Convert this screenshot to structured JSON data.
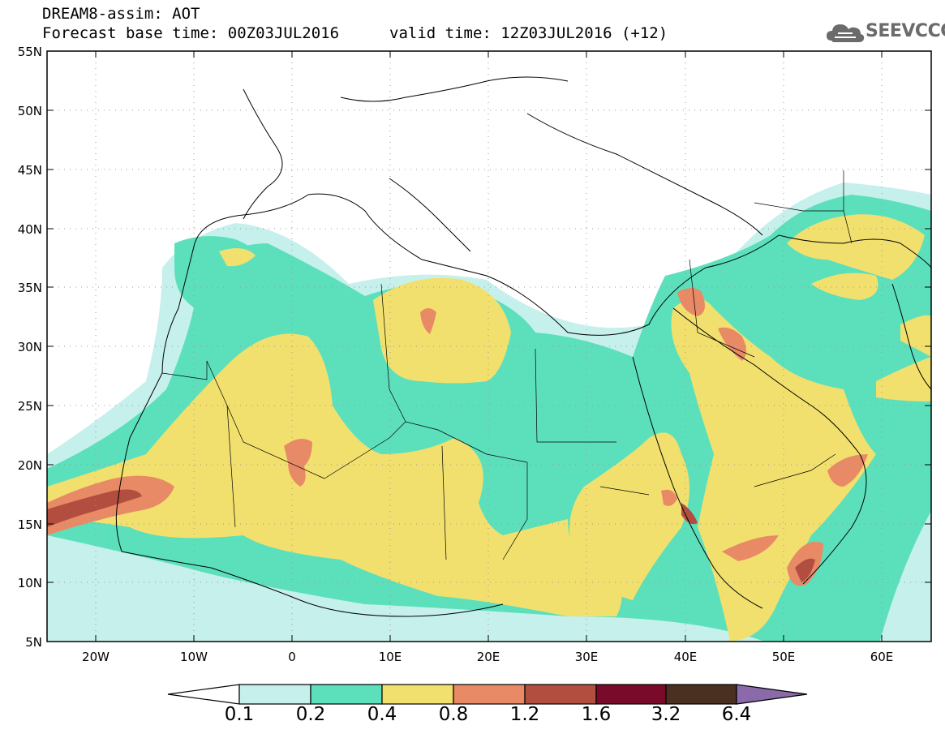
{
  "header": {
    "title": "DREAM8-assim: AOT",
    "base_time": "Forecast base time: 00Z03JUL2016",
    "valid_time": "valid time: 12Z03JUL2016 (+12)",
    "logo_text": "SEEVCCC"
  },
  "map": {
    "lat_labels": [
      "55N",
      "50N",
      "45N",
      "40N",
      "35N",
      "30N",
      "25N",
      "20N",
      "15N",
      "10N",
      "5N"
    ],
    "lon_labels": [
      "20W",
      "10W",
      "0",
      "10E",
      "20E",
      "30E",
      "40E",
      "50E",
      "60E"
    ],
    "colors": {
      "c01": "#c6f0ec",
      "c02": "#5ce0bc",
      "c04": "#f2e06e",
      "c08": "#e88a66",
      "c12": "#b24e40",
      "c16": "#7a0a2a",
      "c32": "#4a3020",
      "c64": "#8a6aa8"
    }
  },
  "colorbar": {
    "labels": [
      "0.1",
      "0.2",
      "0.4",
      "0.8",
      "1.2",
      "1.6",
      "3.2",
      "6.4"
    ]
  }
}
